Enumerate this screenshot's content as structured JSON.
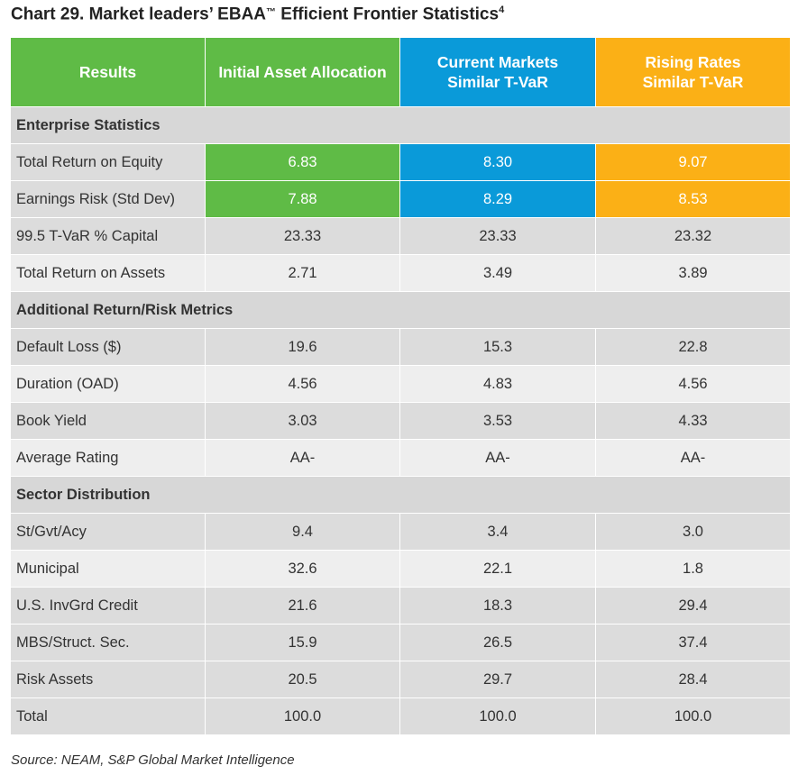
{
  "title": "Chart 29. Market leaders’ EBAA",
  "title_tm": "™",
  "title_rest": " Efficient Frontier Statistics",
  "title_sup": "4",
  "source": "Source: NEAM, S&P Global Market Intelligence",
  "colors": {
    "green": "#5fbb46",
    "blue": "#0a9ad9",
    "orange": "#fbb016"
  },
  "chart_data": {
    "type": "table",
    "columns": [
      "Results",
      "Initial Asset Allocation",
      "Current Markets Similar T-VaR",
      "Rising Rates Similar T-VaR"
    ],
    "header_lines": {
      "c2_line1": "Current Markets",
      "c2_line2": "Similar T-VaR",
      "c3_line1": "Rising Rates",
      "c3_line2": "Similar T-VaR"
    },
    "sections": [
      {
        "name": "Enterprise Statistics",
        "rows": [
          {
            "label": "Total Return on Equity",
            "values": [
              "6.83",
              "8.30",
              "9.07"
            ]
          },
          {
            "label": "Earnings Risk (Std Dev)",
            "values": [
              "7.88",
              "8.29",
              "8.53"
            ]
          },
          {
            "label": "99.5 T-VaR % Capital",
            "values": [
              "23.33",
              "23.33",
              "23.32"
            ]
          },
          {
            "label": "Total Return on Assets",
            "values": [
              "2.71",
              "3.49",
              "3.89"
            ]
          }
        ]
      },
      {
        "name": "Additional Return/Risk Metrics",
        "rows": [
          {
            "label": "Default Loss ($)",
            "values": [
              "19.6",
              "15.3",
              "22.8"
            ]
          },
          {
            "label": "Duration (OAD)",
            "values": [
              "4.56",
              "4.83",
              "4.56"
            ]
          },
          {
            "label": "Book Yield",
            "values": [
              "3.03",
              "3.53",
              "4.33"
            ]
          },
          {
            "label": "Average Rating",
            "values": [
              "AA-",
              "AA-",
              "AA-"
            ]
          }
        ]
      },
      {
        "name": "Sector Distribution",
        "rows": [
          {
            "label": "St/Gvt/Acy",
            "values": [
              "9.4",
              "3.4",
              "3.0"
            ]
          },
          {
            "label": "Municipal",
            "values": [
              "32.6",
              "22.1",
              "1.8"
            ]
          },
          {
            "label": "U.S. InvGrd Credit",
            "values": [
              "21.6",
              "18.3",
              "29.4"
            ]
          },
          {
            "label": "MBS/Struct. Sec.",
            "values": [
              "15.9",
              "26.5",
              "37.4"
            ]
          },
          {
            "label": "Risk Assets",
            "values": [
              "20.5",
              "29.7",
              "28.4"
            ]
          },
          {
            "label": "Total",
            "values": [
              "100.0",
              "100.0",
              "100.0"
            ]
          }
        ]
      }
    ]
  }
}
